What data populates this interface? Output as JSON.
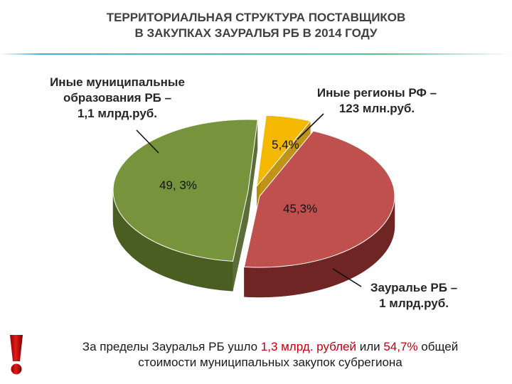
{
  "header": {
    "title_line1": "ТЕРРИТОРИАЛЬНАЯ СТРУКТУРА ПОСТАВЩИКОВ",
    "title_line2": "В ЗАКУПКАХ ЗАУРАЛЬЯ РБ В 2014 ГОДУ"
  },
  "chart_data": {
    "type": "pie",
    "categories": [
      "Иные муниципальные образования РБ",
      "Иные регионы РФ",
      "Зауралье РБ"
    ],
    "values": [
      49.3,
      5.4,
      45.3
    ],
    "value_labels": [
      "49, 3%",
      "5,4%",
      "45,3%"
    ],
    "amounts": [
      "1,1 млрд.руб.",
      "123 млн.руб.",
      "1 млрд.руб."
    ],
    "colors": [
      "#77933c",
      "#f5b800",
      "#c0504d"
    ],
    "side_colors": [
      "#4a5e22",
      "#b88800",
      "#6e2523"
    ],
    "callouts": {
      "other_municipal": {
        "line1": "Иные муниципальные",
        "line2": "образования РБ –",
        "line3": "1,1 млрд.руб."
      },
      "other_regions": {
        "line1": "Иные регионы РФ –",
        "line2": "123 млн.руб."
      },
      "zauralye": {
        "line1": "Зауралье РБ –",
        "line2": "1 млрд.руб."
      }
    },
    "exploded": true,
    "style": "3d"
  },
  "footer": {
    "part1": "За пределы Зауралья РБ ушло ",
    "highlight1": "1,3 млрд. рублей",
    "part2": " или ",
    "highlight2": "54,7%",
    "part3": " общей",
    "line2": "стоимости муниципальных закупок субрегиона",
    "accent_color": "#c0000b"
  },
  "icons": {
    "warning": "exclamation-mark-icon"
  }
}
